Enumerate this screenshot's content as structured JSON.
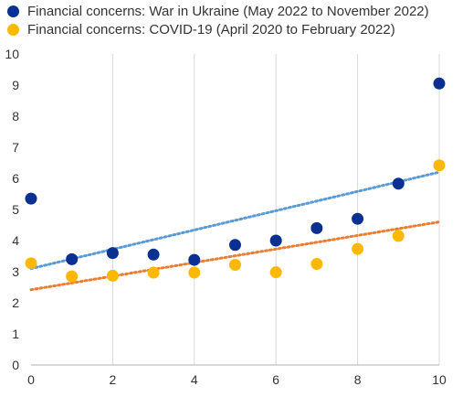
{
  "chart_data": {
    "type": "scatter",
    "xlim": [
      0,
      10
    ],
    "ylim": [
      0,
      10
    ],
    "x_ticks": [
      "0",
      "2",
      "4",
      "6",
      "8",
      "10"
    ],
    "y_ticks": [
      "0",
      "1",
      "2",
      "3",
      "4",
      "5",
      "6",
      "7",
      "8",
      "9",
      "10"
    ],
    "grid": "vertical",
    "legend_position": "top-left",
    "series": [
      {
        "name": "Financial concerns: War in Ukraine (May 2022 to November 2022)",
        "color": "#0a3192",
        "points": [
          [
            0,
            5.35
          ],
          [
            1,
            3.4
          ],
          [
            2,
            3.6
          ],
          [
            3,
            3.55
          ],
          [
            4,
            3.38
          ],
          [
            5,
            3.86
          ],
          [
            6,
            4.0
          ],
          [
            7,
            4.4
          ],
          [
            8,
            4.7
          ],
          [
            9,
            5.83
          ],
          [
            10,
            9.05
          ]
        ],
        "trendline": {
          "color": "#5b9bd5",
          "start": [
            0,
            3.1
          ],
          "end": [
            10,
            6.2
          ]
        }
      },
      {
        "name": "Financial concerns: COVID-19 (April 2020 to February 2022)",
        "color": "#ffb800",
        "points": [
          [
            0,
            3.27
          ],
          [
            1,
            2.85
          ],
          [
            2,
            2.87
          ],
          [
            3,
            2.97
          ],
          [
            4,
            2.97
          ],
          [
            5,
            3.22
          ],
          [
            6,
            2.98
          ],
          [
            7,
            3.25
          ],
          [
            8,
            3.73
          ],
          [
            9,
            4.15
          ],
          [
            10,
            6.42
          ]
        ],
        "trendline": {
          "color": "#ed7d31",
          "start": [
            0,
            2.42
          ],
          "end": [
            10,
            4.6
          ]
        }
      }
    ]
  }
}
